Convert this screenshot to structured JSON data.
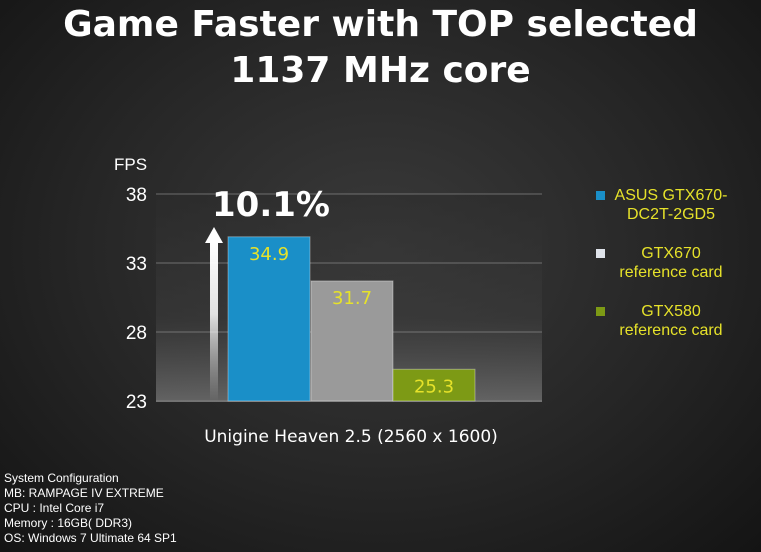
{
  "title": {
    "line1": "Game Faster with TOP selected",
    "line2": "1137 MHz core"
  },
  "colors": {
    "asus": "#1a8fc8",
    "gtx670": "#9a9a9a",
    "gtx580": "#7d9a15",
    "value_label": "#e6e22a",
    "legend_text": "#e6e22a"
  },
  "chart_data": {
    "type": "bar",
    "ylabel": "FPS",
    "xlabel": "Unigine Heaven 2.5 (2560 x 1600)",
    "ylim": [
      23,
      38
    ],
    "yticks": [
      23,
      28,
      33,
      38
    ],
    "grid": true,
    "legend_position": "right",
    "annotation": "10.1%",
    "series": [
      {
        "name": "ASUS GTX670-\nDC2T-2GD5",
        "value": 34.9,
        "label": "34.9",
        "color": "#1a8fc8"
      },
      {
        "name": "GTX670\nreference card",
        "value": 31.7,
        "label": "31.7",
        "color": "#9a9a9a"
      },
      {
        "name": "GTX580\nreference card",
        "value": 25.3,
        "label": "25.3",
        "color": "#7d9a15"
      }
    ]
  },
  "system_config": {
    "heading": "System Configuration",
    "mb": "MB: RAMPAGE IV EXTREME",
    "cpu": "CPU : Intel Core i7",
    "memory": "Memory : 16GB( DDR3)",
    "os": "OS: Windows 7 Ultimate 64 SP1"
  }
}
